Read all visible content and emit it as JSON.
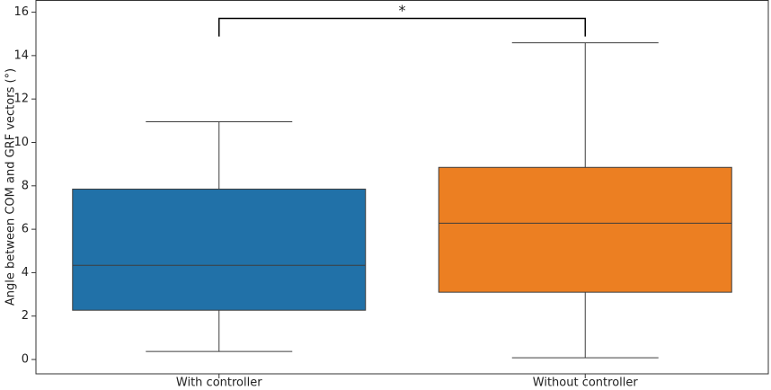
{
  "chart_data": {
    "type": "box",
    "y_label": "Angle between COM and GRF vectors (°)",
    "categories": [
      "With controller",
      "Without controller"
    ],
    "boxes": [
      {
        "color": "#2171a8",
        "min": 0.37,
        "q1": 2.27,
        "median": 4.34,
        "q3": 7.85,
        "max": 10.95
      },
      {
        "color": "#ec7f22",
        "min": 0.08,
        "q1": 3.1,
        "median": 6.28,
        "q3": 8.85,
        "max": 14.59
      }
    ],
    "ylim": [
      -0.66,
      16.54
    ],
    "yticks": [
      0,
      2,
      4,
      6,
      8,
      10,
      12,
      14,
      16
    ],
    "significance": {
      "text": "*",
      "y": 15.71,
      "tick_bottom": 14.88
    }
  }
}
